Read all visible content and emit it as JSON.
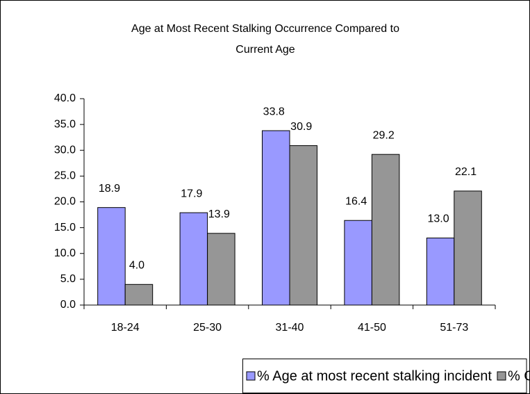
{
  "chart_data": {
    "type": "bar",
    "title": [
      "Age at Most Recent Stalking Occurrence Compared to",
      "Current Age"
    ],
    "categories": [
      "18-24",
      "25-30",
      "31-40",
      "41-50",
      "51-73"
    ],
    "series": [
      {
        "name": "% Age at most recent stalking incident",
        "color": "#9999ff",
        "values": [
          18.9,
          17.9,
          33.8,
          16.4,
          13.0
        ],
        "value_labels": [
          "18.9",
          "17.9",
          "33.8",
          "16.4",
          "13.0"
        ]
      },
      {
        "name": "% Current Age",
        "color": "#969696",
        "values": [
          4.0,
          13.9,
          30.9,
          29.2,
          22.1
        ],
        "value_labels": [
          "4.0",
          "13.9",
          "30.9",
          "29.2",
          "22.1"
        ]
      }
    ],
    "ylim": [
      0,
      40
    ],
    "yticks": [
      {
        "value": 0,
        "label": "0.0"
      },
      {
        "value": 5,
        "label": "5.0"
      },
      {
        "value": 10,
        "label": "10.0"
      },
      {
        "value": 15,
        "label": "15.0"
      },
      {
        "value": 20,
        "label": "20.0"
      },
      {
        "value": 25,
        "label": "25.0"
      },
      {
        "value": 30,
        "label": "30.0"
      },
      {
        "value": 35,
        "label": "35.0"
      },
      {
        "value": 40,
        "label": "40.0"
      }
    ],
    "grid": false,
    "legend": "bottom"
  }
}
